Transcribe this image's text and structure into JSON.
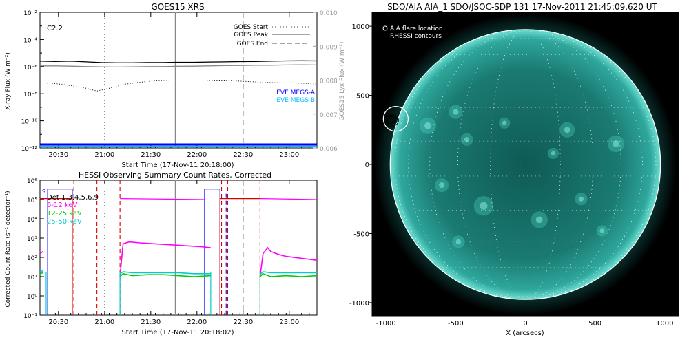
{
  "chart_data": [
    {
      "type": "line",
      "title": "GOES15 XRS",
      "xlabel": "Start Time (17-Nov-11 20:18:00)",
      "ylabel": "X-ray Flux (W m⁻²)",
      "ylabel_right": "GOES15 Lyx Flux (W m⁻²)",
      "x_ticks": [
        "20:30",
        "21:00",
        "21:30",
        "22:00",
        "22:30",
        "23:00"
      ],
      "x_tick_minutes": [
        12,
        42,
        72,
        102,
        132,
        162
      ],
      "xlim_minutes": [
        0,
        180
      ],
      "y_ticks_exp": [
        -2,
        -4,
        -6,
        -8,
        -10,
        -12
      ],
      "ylim_exp": [
        -12,
        -2
      ],
      "y2_ticks": [
        "0.010",
        "0.009",
        "0.008",
        "0.007",
        "0.006"
      ],
      "y2_values": [
        0.01,
        0.009,
        0.008,
        0.007,
        0.006
      ],
      "y2lim": [
        0.006,
        0.01
      ],
      "class_label": "C2.2",
      "legend": [
        "GOES Start",
        "GOES Peak",
        "GOES End"
      ],
      "legend2": [
        "EVE MEGS-A",
        "EVE MEGS-B"
      ],
      "legend2_colors": [
        "#0000ff",
        "#00bfff"
      ],
      "markers_minutes": {
        "start": 42,
        "peak": 88,
        "end": 132
      },
      "series": [
        {
          "name": "XRS long",
          "color": "#000000",
          "x": [
            0,
            10,
            20,
            30,
            40,
            50,
            60,
            70,
            80,
            88,
            100,
            110,
            120,
            130,
            140,
            150,
            160,
            170,
            180
          ],
          "y_exp": [
            -5.6,
            -5.62,
            -5.6,
            -5.65,
            -5.7,
            -5.72,
            -5.72,
            -5.7,
            -5.7,
            -5.68,
            -5.68,
            -5.66,
            -5.65,
            -5.63,
            -5.62,
            -5.6,
            -5.58,
            -5.57,
            -5.58
          ]
        },
        {
          "name": "XRS short",
          "color": "#888888",
          "x": [
            0,
            10,
            20,
            30,
            40,
            50,
            60,
            70,
            80,
            88,
            100,
            110,
            120,
            130,
            140,
            150,
            160,
            170,
            180
          ],
          "y_exp": [
            -5.95,
            -5.95,
            -5.97,
            -6.0,
            -6.02,
            -6.03,
            -6.02,
            -6.0,
            -6.0,
            -5.98,
            -5.97,
            -5.95,
            -5.93,
            -5.92,
            -5.9,
            -5.9,
            -5.88,
            -5.87,
            -5.88
          ]
        },
        {
          "name": "Lyman-alpha",
          "color": "#000000",
          "dotted": true,
          "x": [
            0,
            10,
            20,
            30,
            37,
            45,
            55,
            65,
            75,
            85,
            95,
            105,
            115,
            125,
            135,
            145,
            155,
            165,
            175,
            180
          ],
          "y_exp": [
            -7.2,
            -7.25,
            -7.4,
            -7.6,
            -7.8,
            -7.6,
            -7.3,
            -7.15,
            -7.05,
            -7.0,
            -7.0,
            -7.0,
            -7.05,
            -7.05,
            -7.1,
            -7.15,
            -7.2,
            -7.2,
            -7.25,
            -7.3
          ]
        }
      ]
    },
    {
      "type": "line",
      "title": "HESSI Observing Summary Count Rates, Corrected",
      "xlabel": "Start Time (17-Nov-11 20:18:02)",
      "ylabel": "Corrected Count Rate (s⁻¹ detector⁻¹)",
      "x_ticks": [
        "20:30",
        "21:00",
        "21:30",
        "22:00",
        "22:30",
        "23:00"
      ],
      "x_tick_minutes": [
        12,
        42,
        72,
        102,
        132,
        162
      ],
      "xlim_minutes": [
        0,
        180
      ],
      "y_ticks": [
        "10⁻¹",
        "10⁰",
        "10¹",
        "10²",
        "10³",
        "10⁴",
        "10⁵",
        "10⁶"
      ],
      "y_tick_exp": [
        -1,
        0,
        1,
        2,
        3,
        4,
        5,
        6
      ],
      "ylim_exp": [
        -1,
        6
      ],
      "legend": [
        "Det 1,3,4,5,6,9",
        "6-12 keV",
        "12-25 keV",
        "25-50 keV"
      ],
      "legend_colors": [
        "#000000",
        "#ff00ff",
        "#00cc00",
        "#00cccc"
      ],
      "s_label": "S",
      "night_intervals": [
        [
          0,
          1.5
        ],
        [
          37,
          52
        ],
        [
          122,
          143
        ],
        [
          178,
          180
        ]
      ],
      "saa_intervals": [
        [
          5,
          21
        ],
        [
          107,
          117
        ]
      ],
      "attenuator_starts": [
        52,
        143
      ],
      "attenuator_ends": [
        37,
        122
      ],
      "markers_minutes": {
        "start": 42,
        "peak": 88,
        "end": 132
      },
      "series": [
        {
          "name": "6-12 keV",
          "color": "#ff00ff",
          "x": [
            0,
            2,
            4,
            52,
            54,
            58,
            65,
            75,
            85,
            95,
            105,
            111,
            143,
            145,
            148,
            150,
            155,
            160,
            170,
            180
          ],
          "y_exp": [
            2.2,
            2.3,
            2.3,
            1.0,
            2.7,
            2.8,
            2.75,
            2.7,
            2.65,
            2.6,
            2.55,
            2.5,
            1.0,
            2.2,
            2.5,
            2.3,
            2.15,
            2.05,
            1.95,
            1.85
          ]
        },
        {
          "name": "12-25 keV",
          "color": "#00cc00",
          "x": [
            0,
            2,
            4,
            52,
            54,
            60,
            70,
            80,
            90,
            100,
            111,
            143,
            145,
            150,
            160,
            170,
            180
          ],
          "y_exp": [
            1.15,
            1.2,
            1.2,
            1.0,
            1.15,
            1.05,
            1.1,
            1.1,
            1.05,
            1.0,
            1.05,
            1.0,
            1.15,
            1.0,
            1.05,
            1.0,
            1.05
          ]
        },
        {
          "name": "25-50 keV",
          "color": "#00cccc",
          "x": [
            0,
            2,
            4,
            52,
            54,
            60,
            70,
            80,
            90,
            100,
            111,
            143,
            145,
            150,
            160,
            170,
            180
          ],
          "y_exp": [
            1.25,
            1.3,
            1.3,
            1.15,
            1.25,
            1.2,
            1.2,
            1.2,
            1.2,
            1.15,
            1.15,
            1.1,
            1.25,
            1.2,
            1.2,
            1.2,
            1.2
          ]
        }
      ]
    },
    {
      "type": "image",
      "title": "SDO/AIA AIA_1 SDO/JSOC-SDP 131 17-Nov-2011 21:45:09.620 UT",
      "xlabel": "X (arcsecs)",
      "x_ticks": [
        -1000,
        -500,
        0,
        500,
        1000
      ],
      "y_ticks": [
        1000,
        500,
        0,
        -500,
        -1000
      ],
      "lim": [
        -1100,
        1100
      ],
      "solar_radius_arcsec": 970,
      "legend": [
        "AIA flare location",
        "RHESSI contours"
      ],
      "flare_arcsec": [
        -930,
        330
      ],
      "rhessi_arcsec": [
        -960,
        320
      ]
    }
  ]
}
